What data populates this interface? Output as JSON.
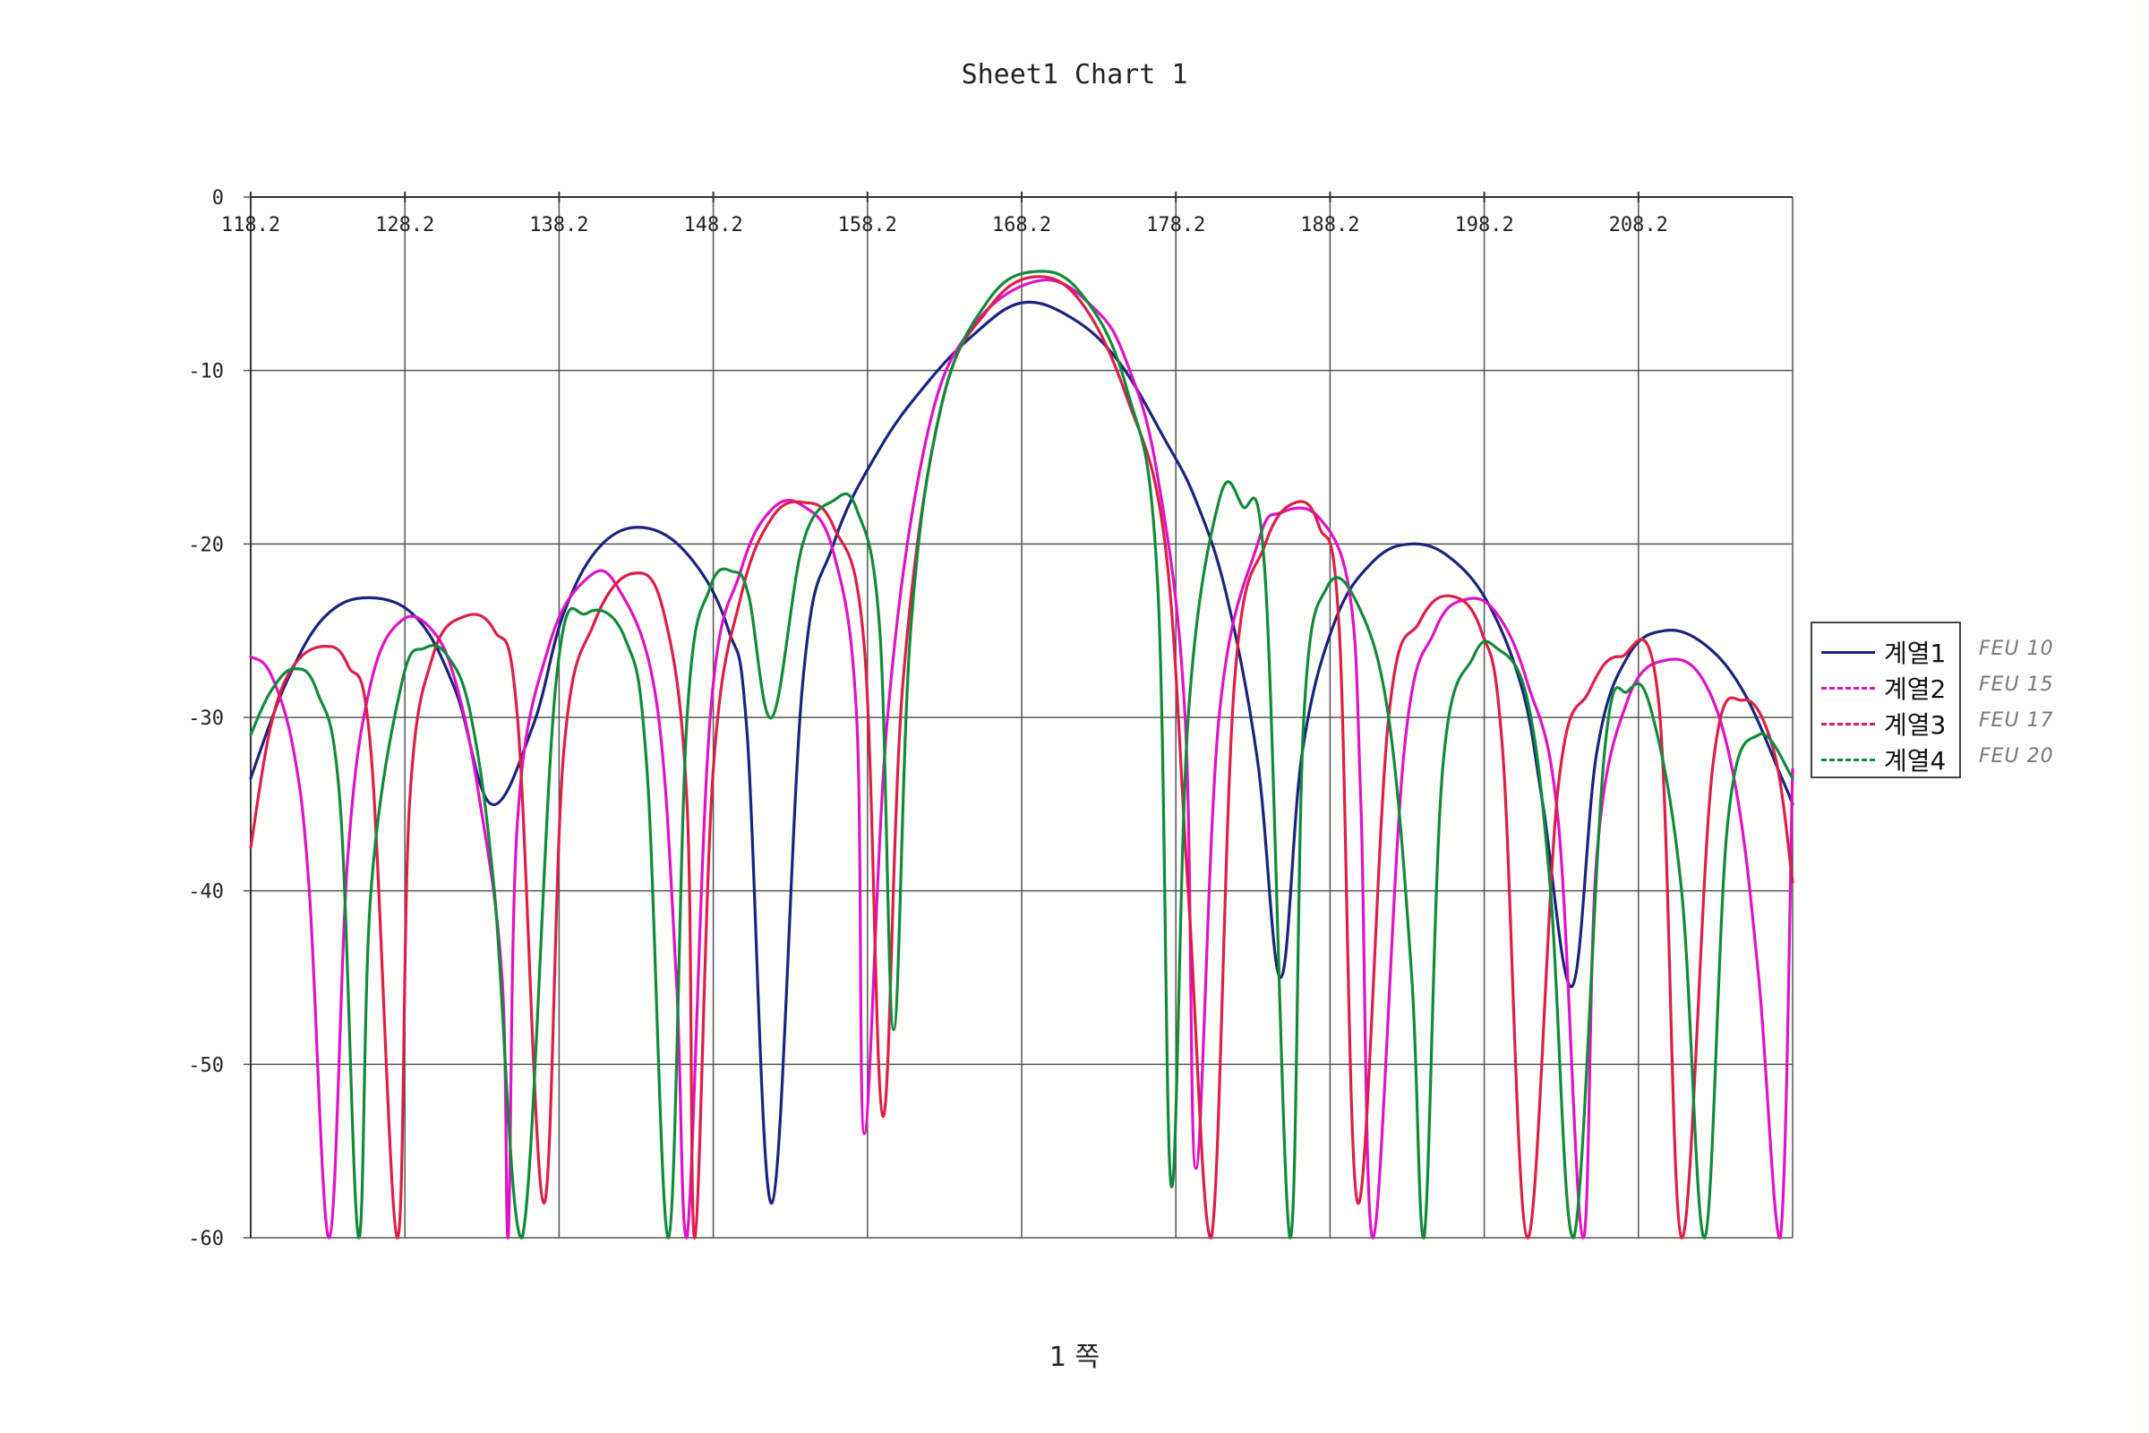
{
  "page": {
    "page_label": "1 쪽"
  },
  "chart_data": {
    "type": "line",
    "title": "Sheet1 Chart 1",
    "xlabel": "",
    "ylabel": "",
    "x_tick_labels": [
      "118.2",
      "128.2",
      "138.2",
      "148.2",
      "158.2",
      "168.2",
      "178.2",
      "188.2",
      "198.2",
      "208.2"
    ],
    "y_tick_labels": [
      "0",
      "-10",
      "-20",
      "-30",
      "-40",
      "-50",
      "-60"
    ],
    "xlim": [
      118.2,
      218.2
    ],
    "ylim": [
      -60,
      0
    ],
    "grid": true,
    "legend_position": "right",
    "x_axis_position": "top",
    "series": [
      {
        "name": "계열1",
        "color": "#1a237e",
        "dash": "solid",
        "note": "FEU 10",
        "x": [
          118.2,
          120.5,
          123.0,
          125.9,
          129.0,
          131.5,
          133.8,
          136.5,
          138.5,
          141.0,
          144.0,
          146.9,
          149.2,
          150.4,
          152.0,
          154.0,
          156.0,
          159.0,
          162.0,
          165.0,
          168.2,
          171.5,
          174.5,
          177.5,
          179.5,
          181.5,
          183.5,
          185.0,
          186.4,
          188.5,
          191.0,
          193.5,
          196.0,
          198.5,
          200.7,
          202.0,
          203.9,
          205.5,
          207.5,
          209.9,
          212.5,
          215.0,
          217.5,
          218.2
        ],
        "y": [
          -33.5,
          -28.0,
          -24.2,
          -23.1,
          -24.3,
          -28.5,
          -35.0,
          -30.5,
          -24.0,
          -20.0,
          -19.1,
          -21.0,
          -25.0,
          -31.0,
          -58.0,
          -28.0,
          -20.0,
          -14.5,
          -10.8,
          -8.0,
          -6.1,
          -7.0,
          -9.5,
          -14.0,
          -17.5,
          -23.0,
          -32.5,
          -45.0,
          -32.0,
          -24.5,
          -21.0,
          -20.0,
          -20.8,
          -23.5,
          -28.5,
          -35.0,
          -45.5,
          -32.0,
          -26.5,
          -25.0,
          -25.8,
          -28.5,
          -33.5,
          -35.0
        ]
      },
      {
        "name": "계열2",
        "color": "#e012c8",
        "dash": "solid",
        "note": "FEU 15",
        "x": [
          118.2,
          119.5,
          121.0,
          122.0,
          123.3,
          124.5,
          126.0,
          128.0,
          130.0,
          131.5,
          133.0,
          134.5,
          134.9,
          135.5,
          137.5,
          140.0,
          142.0,
          144.5,
          145.8,
          146.5,
          148.0,
          150.0,
          152.0,
          154.0,
          156.0,
          157.5,
          158.0,
          159.5,
          162.0,
          165.0,
          169.5,
          173.0,
          175.0,
          177.0,
          178.8,
          179.5,
          181.0,
          183.5,
          185.0,
          187.5,
          189.5,
          190.2,
          191.0,
          193.0,
          195.0,
          197.0,
          199.0,
          201.0,
          203.0,
          204.6,
          205.5,
          207.5,
          210.0,
          212.5,
          214.5,
          216.0,
          217.4,
          218.2
        ],
        "y": [
          -26.5,
          -27.5,
          -32.0,
          -40.0,
          -60.0,
          -38.0,
          -28.0,
          -24.4,
          -25.0,
          -28.0,
          -34.5,
          -45.0,
          -60.0,
          -36.0,
          -26.0,
          -22.0,
          -22.5,
          -29.0,
          -45.0,
          -60.0,
          -30.0,
          -21.5,
          -18.0,
          -17.8,
          -20.5,
          -30.0,
          -54.0,
          -30.0,
          -14.0,
          -7.5,
          -4.8,
          -6.5,
          -9.5,
          -16.0,
          -30.0,
          -56.0,
          -30.0,
          -20.0,
          -18.2,
          -18.5,
          -23.0,
          -35.0,
          -60.0,
          -32.0,
          -25.0,
          -23.2,
          -24.0,
          -28.0,
          -36.0,
          -60.0,
          -38.0,
          -29.0,
          -26.7,
          -28.0,
          -34.0,
          -45.0,
          -60.0,
          -33.0
        ]
      },
      {
        "name": "계열3",
        "color": "#dc1e4a",
        "dash": "solid",
        "note": "FEU 17",
        "x": [
          118.2,
          119.5,
          121.0,
          123.0,
          124.5,
          126.0,
          127.7,
          128.5,
          130.0,
          132.0,
          134.0,
          135.5,
          137.2,
          138.5,
          140.5,
          143.0,
          145.0,
          146.5,
          147.0,
          148.2,
          150.0,
          152.0,
          154.0,
          156.0,
          158.0,
          159.2,
          160.5,
          163.0,
          166.0,
          169.0,
          172.0,
          175.0,
          177.5,
          179.0,
          180.5,
          182.0,
          184.0,
          186.0,
          187.5,
          188.8,
          190.0,
          192.0,
          194.0,
          196.0,
          198.0,
          199.4,
          201.0,
          203.0,
          205.0,
          207.0,
          209.5,
          211.0,
          213.0,
          215.0,
          217.0,
          218.2
        ],
        "y": [
          -37.5,
          -30.5,
          -27.0,
          -25.9,
          -27.0,
          -32.0,
          -60.0,
          -35.0,
          -26.5,
          -24.2,
          -25.0,
          -30.0,
          -58.0,
          -32.0,
          -24.5,
          -21.7,
          -24.0,
          -35.0,
          -60.0,
          -33.0,
          -23.0,
          -18.5,
          -17.6,
          -19.0,
          -26.0,
          -53.0,
          -28.0,
          -12.0,
          -6.5,
          -4.6,
          -6.0,
          -11.5,
          -20.0,
          -40.0,
          -60.0,
          -28.0,
          -20.0,
          -17.6,
          -19.0,
          -25.0,
          -58.0,
          -30.0,
          -24.5,
          -23.0,
          -25.0,
          -32.0,
          -60.0,
          -34.0,
          -28.5,
          -26.5,
          -29.0,
          -60.0,
          -33.0,
          -29.0,
          -32.0,
          -39.5
        ]
      },
      {
        "name": "계열4",
        "color": "#118a3c",
        "dash": "solid",
        "note": "FEU 20",
        "x": [
          118.2,
          119.5,
          121.0,
          122.5,
          124.0,
          125.2,
          126.0,
          128.0,
          129.5,
          131.0,
          132.5,
          134.0,
          135.8,
          138.0,
          140.0,
          142.5,
          143.9,
          145.3,
          146.5,
          148.0,
          149.5,
          150.5,
          152.0,
          154.0,
          156.0,
          157.5,
          159.0,
          159.9,
          161.0,
          163.0,
          166.0,
          169.0,
          172.0,
          175.0,
          177.0,
          177.9,
          179.0,
          181.0,
          182.5,
          184.0,
          185.6,
          186.5,
          188.0,
          190.0,
          192.0,
          193.5,
          194.3,
          195.5,
          197.5,
          199.0,
          201.0,
          202.5,
          204.0,
          206.0,
          207.5,
          209.0,
          211.0,
          212.5,
          214.0,
          216.0,
          218.2
        ],
        "y": [
          -31.0,
          -28.5,
          -27.2,
          -28.5,
          -35.0,
          -60.0,
          -40.0,
          -28.0,
          -26.0,
          -26.5,
          -30.0,
          -40.0,
          -60.0,
          -28.0,
          -24.0,
          -25.5,
          -33.0,
          -60.0,
          -30.0,
          -22.5,
          -21.6,
          -23.0,
          -30.0,
          -20.0,
          -17.5,
          -18.0,
          -25.0,
          -48.0,
          -25.0,
          -12.0,
          -6.0,
          -4.3,
          -5.5,
          -11.0,
          -22.0,
          -57.0,
          -30.0,
          -17.5,
          -17.8,
          -22.0,
          -60.0,
          -30.0,
          -22.5,
          -23.5,
          -30.0,
          -45.0,
          -60.0,
          -33.0,
          -26.5,
          -26.0,
          -29.0,
          -40.0,
          -60.0,
          -32.0,
          -28.5,
          -29.5,
          -40.0,
          -60.0,
          -36.0,
          -31.0,
          -33.5
        ]
      }
    ]
  }
}
